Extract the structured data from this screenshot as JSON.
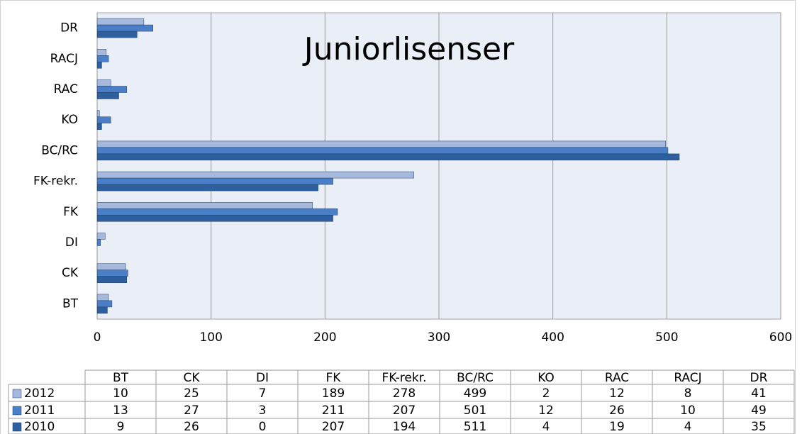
{
  "chart_data": {
    "type": "bar",
    "orientation": "horizontal",
    "title": "Juniorlisenser",
    "categories": [
      "BT",
      "CK",
      "DI",
      "FK",
      "FK-rekr.",
      "BC/RC",
      "KO",
      "RAC",
      "RACJ",
      "DR"
    ],
    "series": [
      {
        "name": "2012",
        "color": "#a6b8dc",
        "values": [
          10,
          25,
          7,
          189,
          278,
          499,
          2,
          12,
          8,
          41
        ]
      },
      {
        "name": "2011",
        "color": "#4a7ec6",
        "values": [
          13,
          27,
          3,
          211,
          207,
          501,
          12,
          26,
          10,
          49
        ]
      },
      {
        "name": "2010",
        "color": "#2d5f9f",
        "values": [
          9,
          26,
          0,
          207,
          194,
          511,
          4,
          19,
          4,
          35
        ]
      }
    ],
    "xlim": [
      0,
      600
    ],
    "xticks": [
      0,
      100,
      200,
      300,
      400,
      500,
      600
    ],
    "grid": true,
    "data_table": true
  }
}
